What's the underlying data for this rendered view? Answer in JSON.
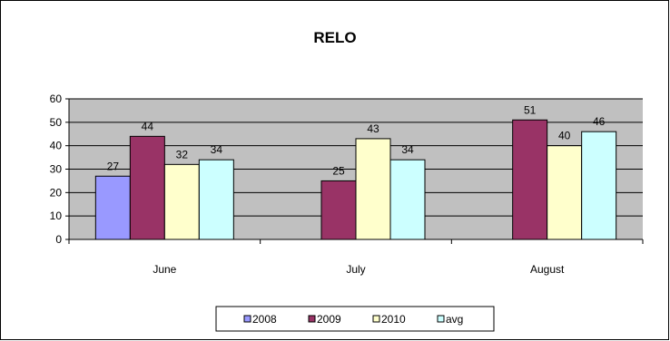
{
  "chart_data": {
    "type": "bar",
    "title": "RELO",
    "xlabel": "",
    "ylabel": "",
    "categories": [
      "June",
      "July",
      "August"
    ],
    "series": [
      {
        "name": "2008",
        "values": [
          27,
          null,
          null
        ],
        "color": "#9999FF"
      },
      {
        "name": "2009",
        "values": [
          44,
          25,
          51
        ],
        "color": "#993366"
      },
      {
        "name": "2010",
        "values": [
          32,
          43,
          40
        ],
        "color": "#FFFFCC"
      },
      {
        "name": "avg",
        "values": [
          34,
          34,
          46
        ],
        "color": "#CCFFFF"
      }
    ],
    "ylim": [
      0,
      60
    ],
    "yticks": [
      0,
      10,
      20,
      30,
      40,
      50,
      60
    ],
    "grid": true,
    "plot_background": "#C0C0C0",
    "legend_position": "bottom"
  }
}
